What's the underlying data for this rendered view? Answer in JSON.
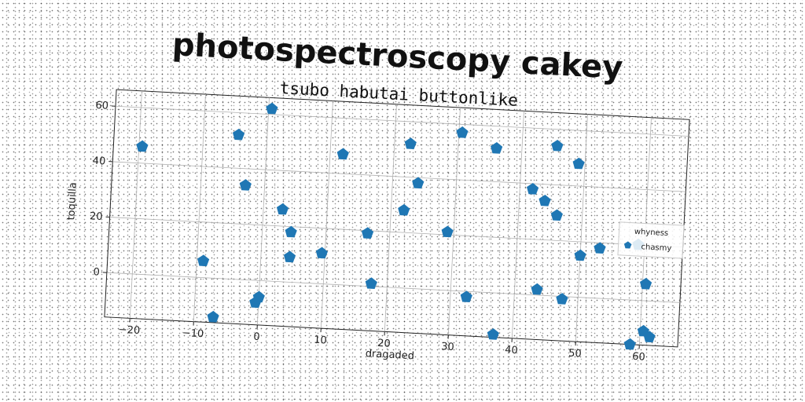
{
  "chart_data": {
    "type": "scatter",
    "title": "photospectroscopy cakey",
    "subtitle": "tsubo habutai buttonlike",
    "xlabel": "dragaded",
    "ylabel": "toquilla",
    "xlim": [
      -24,
      66
    ],
    "ylim": [
      -16,
      66
    ],
    "xticks": [
      -20,
      -10,
      0,
      10,
      20,
      30,
      40,
      50,
      60
    ],
    "yticks": [
      0,
      20,
      40,
      60
    ],
    "grid": true,
    "legend": {
      "title": "whyness",
      "placement": "right"
    },
    "series": [
      {
        "name": "chasmy",
        "color": "#1f77b4",
        "marker": "pentagon",
        "x": [
          -19.5,
          -9,
          -7,
          -4.5,
          -3,
          0,
          0.5,
          3,
          4.5,
          4.5,
          -0.5,
          9.5,
          12,
          16.5,
          17.5,
          22,
          22.5,
          24,
          29,
          30.5,
          32.5,
          36,
          37,
          42,
          43.5,
          44,
          45.5,
          46,
          47.5,
          49,
          50,
          53,
          59,
          58.5,
          60.5,
          60.5,
          61.5
        ],
        "y": [
          46,
          6,
          -14,
          52,
          34,
          -6,
          62,
          26,
          18,
          9,
          -8,
          11,
          47,
          19,
          1,
          28,
          52,
          38,
          21,
          57,
          -2,
          52,
          -15,
          38,
          2,
          34,
          54,
          29,
          -1,
          48,
          15,
          18,
          20,
          -16,
          6,
          -11,
          -13
        ]
      }
    ]
  }
}
